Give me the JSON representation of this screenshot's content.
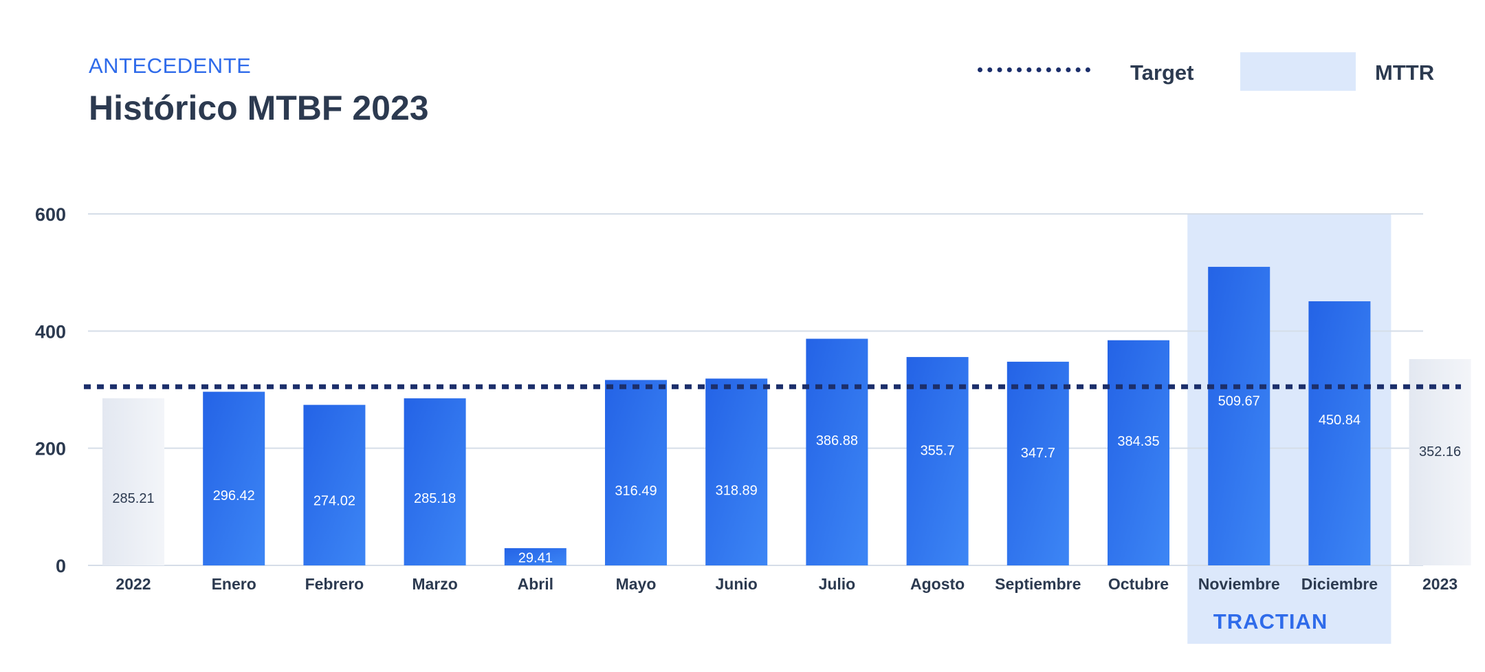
{
  "header": {
    "eyebrow": "ANTECEDENTE",
    "title": "Histórico MTBF 2023"
  },
  "legend": {
    "target_label": "Target",
    "mttr_label": "MTTR"
  },
  "brand": {
    "logo_text": "TRACTIAN"
  },
  "colors": {
    "bar_dark": "#2463e6",
    "bar_light": "#3d86f5",
    "reference_bar": "#e6ebf3",
    "highlight_band": "#dce8fb",
    "target_line": "#1c2f6b",
    "grid": "#d5dde8",
    "text": "#2c3a50",
    "accent": "#2f6bea"
  },
  "chart_data": {
    "type": "bar",
    "title": "Histórico MTBF 2023",
    "xlabel": "",
    "ylabel": "",
    "ylim": [
      0,
      600
    ],
    "yticks": [
      0,
      200,
      400,
      600
    ],
    "grid": true,
    "legend_position": "top-right",
    "target": 305,
    "categories": [
      "2022",
      "Enero",
      "Febrero",
      "Marzo",
      "Abril",
      "Mayo",
      "Junio",
      "Julio",
      "Agosto",
      "Septiembre",
      "Octubre",
      "Noviembre",
      "Diciembre",
      "2023"
    ],
    "values": [
      285.21,
      296.42,
      274.02,
      285.18,
      29.41,
      316.49,
      318.89,
      386.88,
      355.7,
      347.7,
      384.35,
      509.67,
      450.84,
      352.16
    ],
    "value_labels": [
      "285.21",
      "296.42",
      "274.02",
      "285.18",
      "29.41",
      "316.49",
      "318.89",
      "386.88",
      "355.7",
      "347.7",
      "384.35",
      "509.67",
      "450.84",
      "352.16"
    ],
    "reference_categories": [
      "2022",
      "2023"
    ],
    "highlighted_categories": [
      "Noviembre",
      "Diciembre"
    ]
  }
}
